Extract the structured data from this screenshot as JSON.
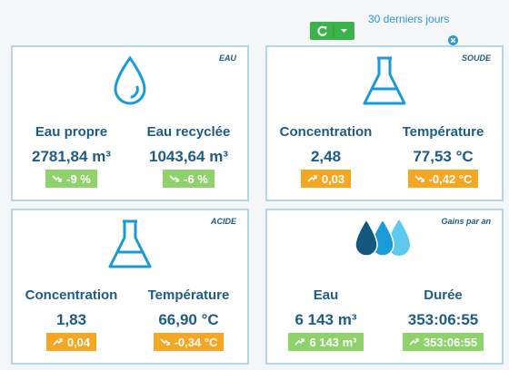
{
  "header": {
    "period": "30 derniers jours"
  },
  "panels": [
    {
      "tag": "EAU",
      "items": [
        {
          "label": "Eau propre",
          "value": "2781,84 m³",
          "badge": "-9 %",
          "badge_color": "#8fd16b"
        },
        {
          "label": "Eau recyclée",
          "value": "1043,64 m³",
          "badge": "-6 %",
          "badge_color": "#8fd16b"
        }
      ]
    },
    {
      "tag": "SOUDE",
      "items": [
        {
          "label": "Concentration",
          "value": "2,48",
          "badge": "0,03",
          "badge_color": "#f5a623"
        },
        {
          "label": "Température",
          "value": "77,53 °C",
          "badge": "-0,42 °C",
          "badge_color": "#f5a623"
        }
      ]
    },
    {
      "tag": "ACIDE",
      "items": [
        {
          "label": "Concentration",
          "value": "1,83",
          "badge": "0,04",
          "badge_color": "#f5a623"
        },
        {
          "label": "Température",
          "value": "66,90 °C",
          "badge": "-0,34 °C",
          "badge_color": "#f5a623"
        }
      ]
    },
    {
      "tag": "Gains par an",
      "items": [
        {
          "label": "Eau",
          "value": "6 143 m³",
          "badge": "6 143 m³",
          "badge_color": "#8fd16b"
        },
        {
          "label": "Durée",
          "value": "353:06:55",
          "badge": "353:06:55",
          "badge_color": "#8fd16b"
        }
      ]
    }
  ]
}
